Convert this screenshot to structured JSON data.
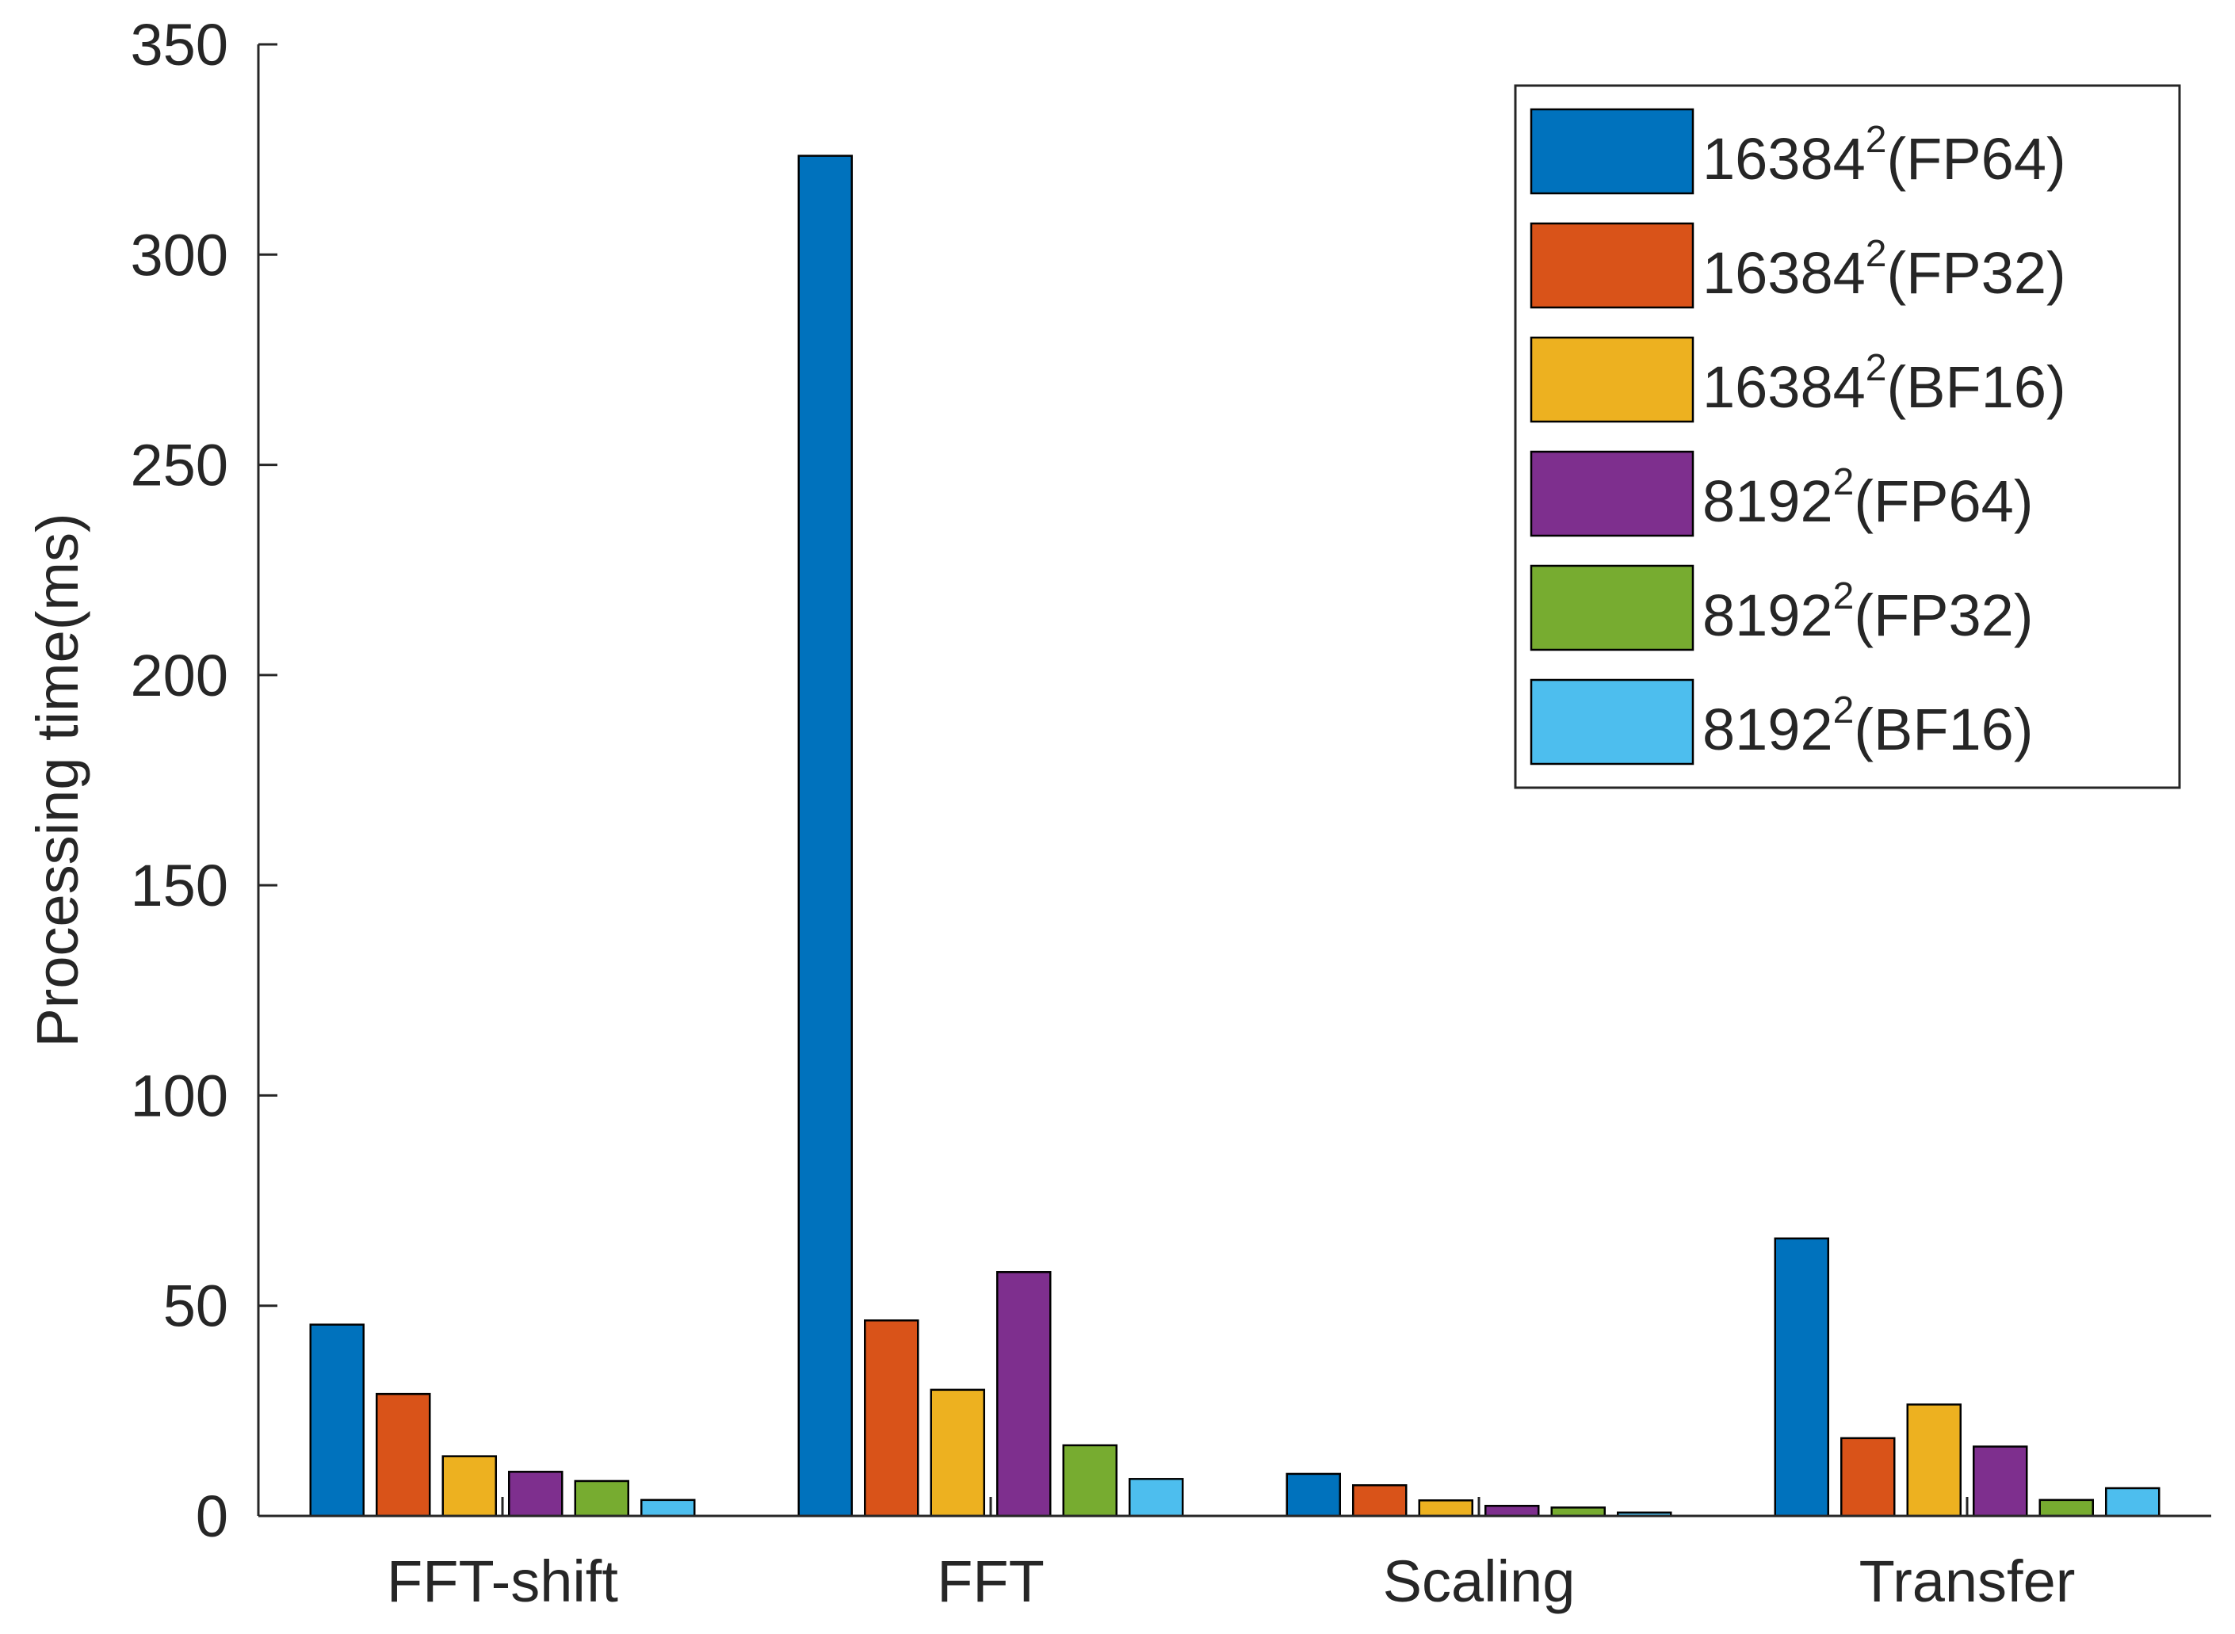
{
  "chart_data": {
    "type": "bar",
    "title": "",
    "xlabel": "",
    "ylabel": "Processing time(ms)",
    "ylim": [
      0,
      350
    ],
    "yticks": [
      0,
      50,
      100,
      150,
      200,
      250,
      300,
      350
    ],
    "categories": [
      "FFT-shift",
      "FFT",
      "Scaling",
      "Transfer"
    ],
    "series": [
      {
        "name": "16384",
        "exp": "2",
        "suffix": "(FP64)",
        "color": "#0072BD",
        "values": [
          45.5,
          323.5,
          10,
          66
        ]
      },
      {
        "name": "16384",
        "exp": "2",
        "suffix": "(FP32)",
        "color": "#D95319",
        "values": [
          29,
          46.5,
          7.3,
          18.5
        ]
      },
      {
        "name": "16384",
        "exp": "2",
        "suffix": "(BF16)",
        "color": "#EDB120",
        "values": [
          14.2,
          30,
          3.7,
          26.5
        ]
      },
      {
        "name": "8192",
        "exp": "2",
        "suffix": "(FP64)",
        "color": "#7E2F8E",
        "values": [
          10.5,
          58,
          2.4,
          16.5
        ]
      },
      {
        "name": "8192",
        "exp": "2",
        "suffix": "(FP32)",
        "color": "#77AC30",
        "values": [
          8.3,
          16.8,
          2,
          3.8
        ]
      },
      {
        "name": "8192",
        "exp": "2",
        "suffix": "(BF16)",
        "color": "#4DBEEE",
        "values": [
          3.8,
          8.8,
          0.8,
          6.6
        ]
      }
    ],
    "grid": false,
    "legend_position": "top-right"
  }
}
